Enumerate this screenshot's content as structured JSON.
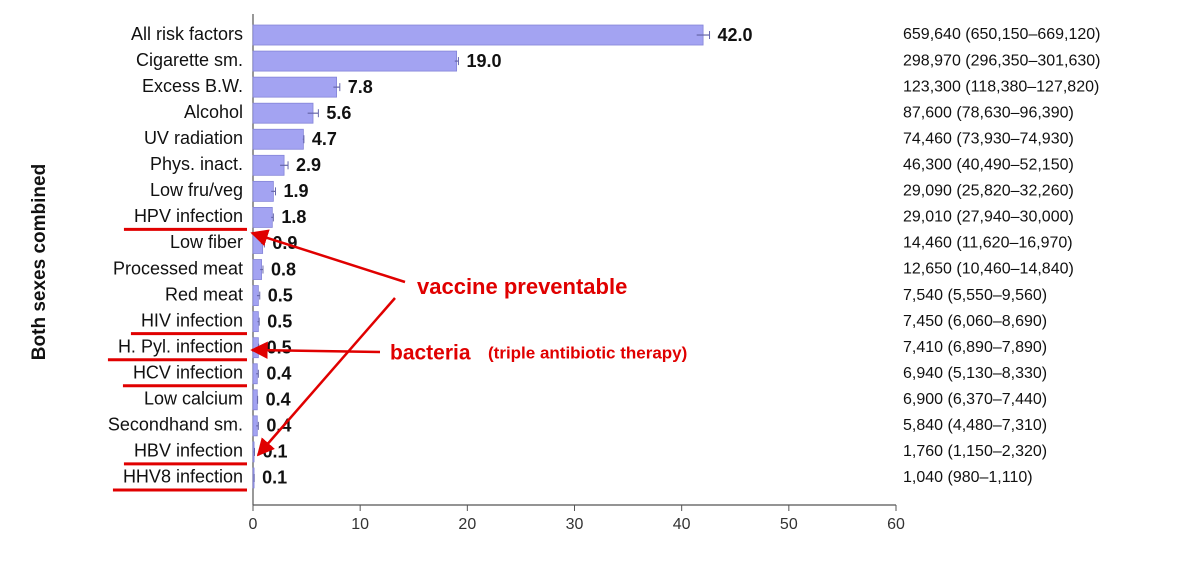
{
  "chart_data": {
    "type": "bar",
    "orientation": "horizontal",
    "y_axis_label": "Both sexes combined",
    "categories": [
      "All risk factors",
      "Cigarette sm.",
      "Excess B.W.",
      "Alcohol",
      "UV radiation",
      "Phys. inact.",
      "Low fru/veg",
      "HPV infection",
      "Low fiber",
      "Processed meat",
      "Red meat",
      "HIV infection",
      "H. Pyl. infection",
      "HCV infection",
      "Low calcium",
      "Secondhand sm.",
      "HBV infection",
      "HHV8 infection"
    ],
    "values": [
      42.0,
      19.0,
      7.8,
      5.6,
      4.7,
      2.9,
      1.9,
      1.8,
      0.9,
      0.8,
      0.5,
      0.5,
      0.5,
      0.4,
      0.4,
      0.4,
      0.1,
      0.1
    ],
    "value_labels": [
      "42.0",
      "19.0",
      "7.8",
      "5.6",
      "4.7",
      "2.9",
      "1.9",
      "1.8",
      "0.9",
      "0.8",
      "0.5",
      "0.5",
      "0.5",
      "0.4",
      "0.4",
      "0.4",
      "0.1",
      "0.1"
    ],
    "errors": [
      0.6,
      0.17,
      0.3,
      0.5,
      0.05,
      0.37,
      0.2,
      0.1,
      0.16,
      0.13,
      0.13,
      0.08,
      0.03,
      0.1,
      0.03,
      0.1,
      0.04,
      0.01
    ],
    "counts": [
      "659,640 (650,150–669,120)",
      "298,970 (296,350–301,630)",
      "123,300 (118,380–127,820)",
      "87,600 (78,630–96,390)",
      "74,460 (73,930–74,930)",
      "46,300 (40,490–52,150)",
      "29,090 (25,820–32,260)",
      "29,010 (27,940–30,000)",
      "14,460 (11,620–16,970)",
      "12,650 (10,460–14,840)",
      "7,540 (5,550–9,560)",
      "7,450 (6,060–8,690)",
      "7,410 (6,890–7,890)",
      "6,940 (5,130–8,330)",
      "6,900 (6,370–7,440)",
      "5,840 (4,480–7,310)",
      "1,760 (1,150–2,320)",
      "1,040 (980–1,110)"
    ],
    "highlighted": [
      false,
      false,
      false,
      false,
      false,
      false,
      false,
      true,
      false,
      false,
      false,
      true,
      true,
      true,
      false,
      false,
      true,
      true
    ],
    "color": "#a3a3f2",
    "highlight_color": "#e00000",
    "xlim": [
      0,
      60
    ],
    "xticks": [
      0,
      10,
      20,
      30,
      40,
      50,
      60
    ],
    "annotations": [
      "vaccine preventable",
      "bacteria",
      "(triple antibiotic therapy)"
    ]
  }
}
